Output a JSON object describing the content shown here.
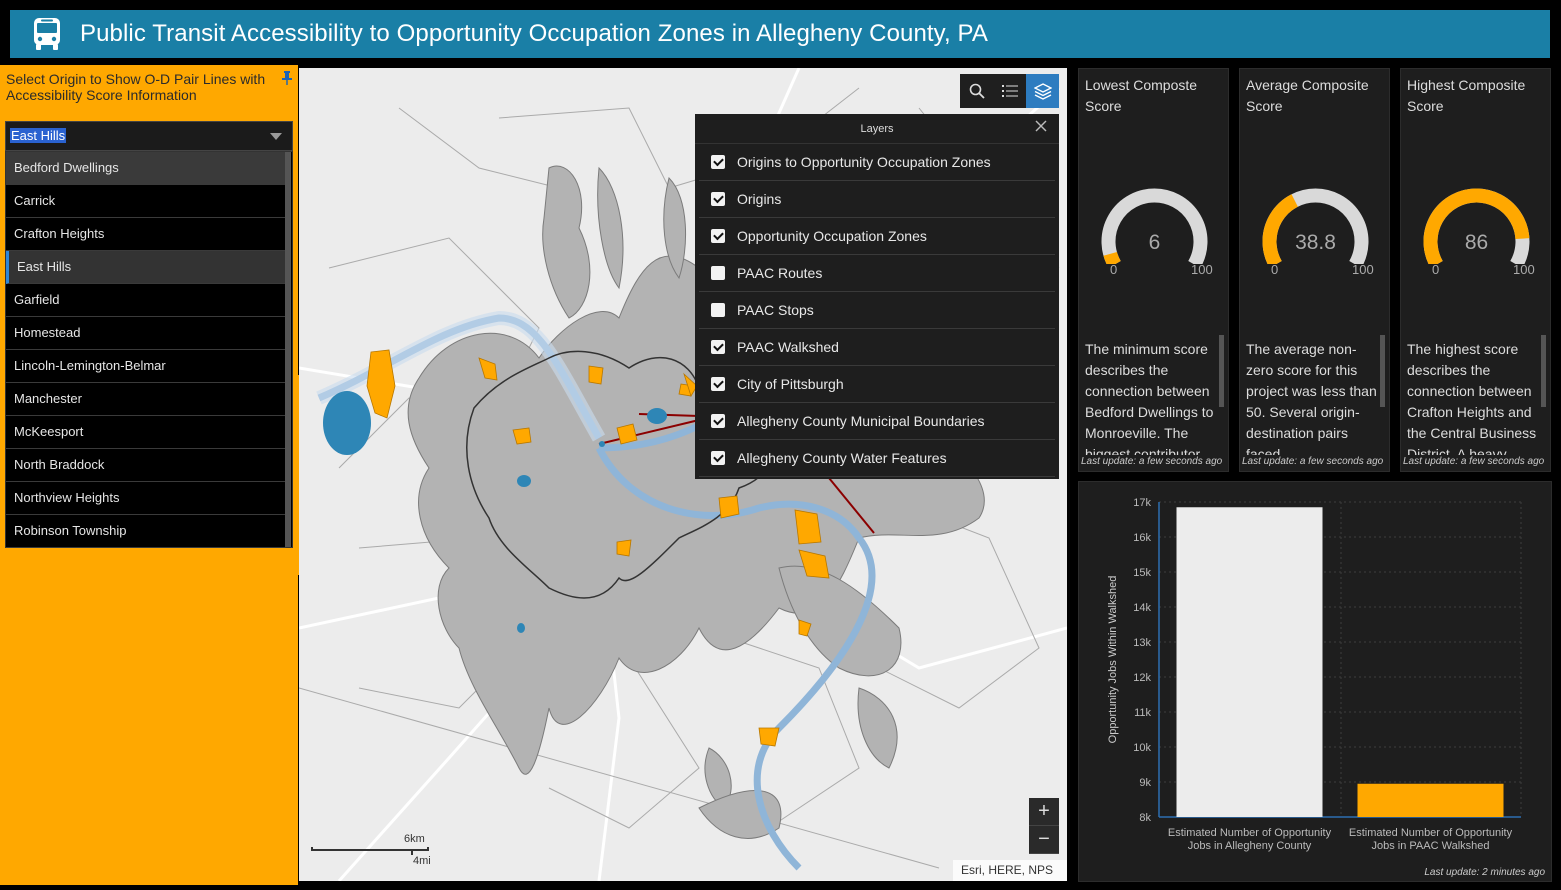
{
  "header": {
    "title": "Public Transit Accessibility to Opportunity Occupation Zones in Allegheny County, PA",
    "icon": "bus-icon"
  },
  "selector": {
    "prompt": "Select Origin to Show O-D Pair Lines with Accessibility Score Information",
    "selected": "East Hills",
    "options": [
      "Bedford Dwellings",
      "Carrick",
      "Crafton Heights",
      "East Hills",
      "Garfield",
      "Homestead",
      "Lincoln-Lemington-Belmar",
      "Manchester",
      "McKeesport",
      "North Braddock",
      "Northview Heights",
      "Robinson Township"
    ]
  },
  "map": {
    "layers_title": "Layers",
    "layers": [
      {
        "label": "Origins to Opportunity Occupation Zones",
        "checked": true
      },
      {
        "label": "Origins",
        "checked": true
      },
      {
        "label": "Opportunity Occupation Zones",
        "checked": true
      },
      {
        "label": "PAAC Routes",
        "checked": false
      },
      {
        "label": "PAAC Stops",
        "checked": false
      },
      {
        "label": "PAAC Walkshed",
        "checked": true
      },
      {
        "label": "City of Pittsburgh",
        "checked": true
      },
      {
        "label": "Allegheny County Municipal Boundaries",
        "checked": true
      },
      {
        "label": "Allegheny County Water Features",
        "checked": true
      }
    ],
    "scale_km": "6km",
    "scale_mi": "4mi",
    "attribution": "Esri, HERE, NPS",
    "zoom_in": "+",
    "zoom_out": "−"
  },
  "gauges": [
    {
      "title": "Lowest Composte Score",
      "value": "6",
      "min": "0",
      "max": "100",
      "fraction": 0.06,
      "description": "The minimum score describes the connection between Bedford Dwellings to Monroeville. The biggest contributor",
      "updated": "Last update: a few seconds ago"
    },
    {
      "title": "Average Composite Score",
      "value": "38.8",
      "min": "0",
      "max": "100",
      "fraction": 0.388,
      "description": "The average non-zero score for this project was less than 50. Several origin-destination pairs faced",
      "updated": "Last update: a few seconds ago"
    },
    {
      "title": "Highest Composite Score",
      "value": "86",
      "min": "0",
      "max": "100",
      "fraction": 0.86,
      "description": "The highest score describes the connection between Crafton Heights and the Central Business District. A heavy",
      "updated": "Last update: a few seconds ago"
    }
  ],
  "colors": {
    "accent": "#ffa800",
    "header": "#1a7fa6",
    "gauge_track": "#d9d9d9",
    "bar1": "#ececec",
    "bar2": "#ffa800"
  },
  "chart_data": {
    "type": "bar",
    "categories": [
      "Estimated Number of Opportunity Jobs in Allegheny County",
      "Estimated Number of Opportunity Jobs in PAAC Walkshed"
    ],
    "category_lines": [
      [
        "Estimated Number of Opportunity",
        "Jobs in Allegheny County"
      ],
      [
        "Estimated Number of Opportunity",
        "Jobs in PAAC Walkshed"
      ]
    ],
    "values": [
      16850,
      8950
    ],
    "ylabel": "Opportunity Jobs Within Walkshed",
    "ylim": [
      8000,
      17000
    ],
    "yticks": [
      "8k",
      "9k",
      "10k",
      "11k",
      "12k",
      "13k",
      "14k",
      "15k",
      "16k",
      "17k"
    ],
    "updated": "Last update: 2 minutes ago"
  }
}
